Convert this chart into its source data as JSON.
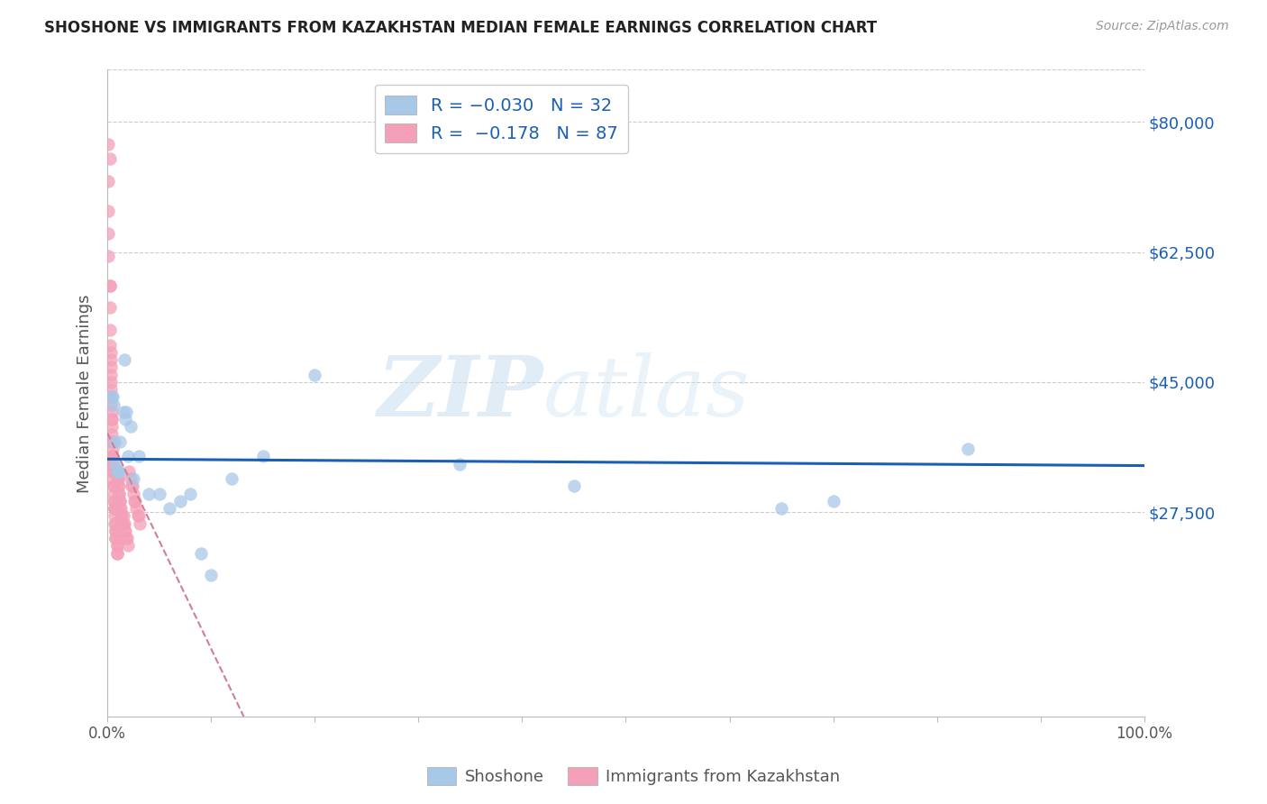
{
  "title": "SHOSHONE VS IMMIGRANTS FROM KAZAKHSTAN MEDIAN FEMALE EARNINGS CORRELATION CHART",
  "source": "Source: ZipAtlas.com",
  "ylabel": "Median Female Earnings",
  "y_tick_labels": [
    "$27,500",
    "$45,000",
    "$62,500",
    "$80,000"
  ],
  "y_tick_values": [
    27500,
    45000,
    62500,
    80000
  ],
  "ylim": [
    0,
    87000
  ],
  "xlim": [
    0,
    1.0
  ],
  "shoshone_color": "#a8c8e8",
  "kazakhstan_color": "#f4a0b8",
  "regression_blue_color": "#1a5fb4",
  "regression_pink_color": "#d08090",
  "watermark_zip": "ZIP",
  "watermark_atlas": "atlas",
  "shoshone_x": [
    0.004,
    0.005,
    0.006,
    0.007,
    0.008,
    0.009,
    0.01,
    0.011,
    0.012,
    0.015,
    0.016,
    0.017,
    0.018,
    0.02,
    0.022,
    0.025,
    0.03,
    0.04,
    0.05,
    0.06,
    0.07,
    0.08,
    0.09,
    0.1,
    0.12,
    0.15,
    0.2,
    0.34,
    0.45,
    0.65,
    0.7,
    0.83
  ],
  "shoshone_y": [
    43000,
    43000,
    42000,
    37000,
    34000,
    33000,
    33000,
    33000,
    37000,
    41000,
    48000,
    40000,
    41000,
    35000,
    39000,
    32000,
    35000,
    30000,
    30000,
    28000,
    29000,
    30000,
    22000,
    19000,
    32000,
    35000,
    46000,
    34000,
    31000,
    28000,
    29000,
    36000
  ],
  "kazakhstan_x": [
    0.001,
    0.001,
    0.001,
    0.001,
    0.001,
    0.002,
    0.002,
    0.002,
    0.002,
    0.002,
    0.002,
    0.003,
    0.003,
    0.003,
    0.003,
    0.003,
    0.003,
    0.003,
    0.003,
    0.004,
    0.004,
    0.004,
    0.004,
    0.004,
    0.004,
    0.004,
    0.005,
    0.005,
    0.005,
    0.005,
    0.005,
    0.005,
    0.005,
    0.005,
    0.006,
    0.006,
    0.006,
    0.006,
    0.007,
    0.007,
    0.007,
    0.007,
    0.007,
    0.007,
    0.008,
    0.008,
    0.008,
    0.008,
    0.008,
    0.009,
    0.009,
    0.009,
    0.009,
    0.01,
    0.01,
    0.01,
    0.01,
    0.011,
    0.011,
    0.011,
    0.012,
    0.012,
    0.012,
    0.013,
    0.013,
    0.014,
    0.014,
    0.015,
    0.015,
    0.016,
    0.016,
    0.017,
    0.018,
    0.019,
    0.02,
    0.021,
    0.022,
    0.023,
    0.024,
    0.025,
    0.026,
    0.027,
    0.028,
    0.029,
    0.03,
    0.031
  ],
  "kazakhstan_y": [
    77000,
    72000,
    68000,
    65000,
    62000,
    58000,
    58000,
    55000,
    52000,
    50000,
    75000,
    49000,
    48000,
    47000,
    46000,
    45000,
    44000,
    43000,
    42000,
    41000,
    40000,
    40000,
    39000,
    38000,
    37000,
    37000,
    36000,
    35000,
    35000,
    34000,
    34000,
    33000,
    33000,
    32000,
    31000,
    31000,
    30000,
    29000,
    28000,
    29000,
    28000,
    28000,
    27000,
    26000,
    26000,
    25000,
    25000,
    24000,
    24000,
    23000,
    23000,
    22000,
    22000,
    33000,
    32000,
    32000,
    31000,
    31000,
    30000,
    30000,
    29000,
    29000,
    28000,
    28000,
    27000,
    27000,
    26000,
    27000,
    26000,
    26000,
    25000,
    25000,
    24000,
    24000,
    23000,
    33000,
    32000,
    31000,
    31000,
    30000,
    29000,
    29000,
    28000,
    27000,
    27000,
    26000
  ]
}
